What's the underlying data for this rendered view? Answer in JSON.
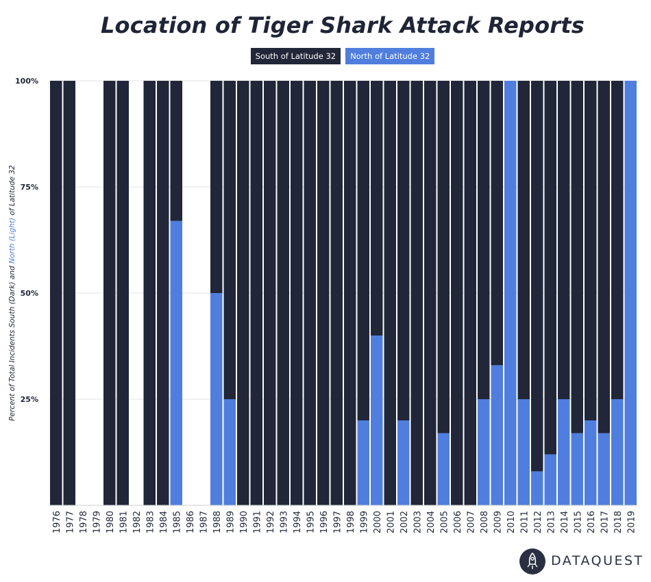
{
  "header": {
    "title": "Location of Tiger Shark Attack Reports"
  },
  "legend": [
    {
      "label": "South of Latitude 32",
      "color": "#212638"
    },
    {
      "label": "North of Latitude 32",
      "color": "#4f7ede"
    }
  ],
  "brand": {
    "name": "DATAQUEST"
  },
  "chart_data": {
    "type": "bar",
    "stacked": true,
    "title": "Location of Tiger Shark Attack Reports",
    "ylabel": "Percent of Total Incidents South (Dark) and North (Light) of Latitude 32",
    "ylabel_parts": [
      {
        "text": "Percent of Total Incidents South (Dark) and ",
        "color": "#212638"
      },
      {
        "text": "North (Light)",
        "color": "#4f7ede"
      },
      {
        "text": " of Latitude 32",
        "color": "#212638"
      }
    ],
    "ylim": [
      0,
      100
    ],
    "yticks": [
      {
        "value": 25,
        "label": "25%"
      },
      {
        "value": 50,
        "label": "50%"
      },
      {
        "value": 75,
        "label": "75%"
      },
      {
        "value": 100,
        "label": "100%"
      }
    ],
    "grid": true,
    "legend_position": "top-center",
    "categories": [
      "1976",
      "1977",
      "1978",
      "1979",
      "1980",
      "1981",
      "1982",
      "1983",
      "1984",
      "1985",
      "1986",
      "1987",
      "1988",
      "1989",
      "1990",
      "1991",
      "1992",
      "1993",
      "1994",
      "1995",
      "1996",
      "1997",
      "1998",
      "1999",
      "2000",
      "2001",
      "2002",
      "2003",
      "2004",
      "2005",
      "2006",
      "2007",
      "2008",
      "2009",
      "2010",
      "2011",
      "2012",
      "2013",
      "2014",
      "2015",
      "2016",
      "2017",
      "2018",
      "2019"
    ],
    "series": [
      {
        "name": "North of Latitude 32",
        "color": "#4f7ede",
        "values": [
          0,
          0,
          null,
          null,
          0,
          0,
          null,
          0,
          0,
          67,
          null,
          null,
          50,
          25,
          0,
          0,
          0,
          0,
          0,
          0,
          0,
          0,
          0,
          20,
          40,
          0,
          20,
          0,
          0,
          17,
          0,
          0,
          25,
          33,
          100,
          25,
          8,
          12,
          25,
          17,
          20,
          17,
          25,
          100
        ]
      },
      {
        "name": "South of Latitude 32",
        "color": "#212638",
        "values": [
          100,
          100,
          null,
          null,
          100,
          100,
          null,
          100,
          100,
          33,
          null,
          null,
          50,
          75,
          100,
          100,
          100,
          100,
          100,
          100,
          100,
          100,
          100,
          80,
          60,
          100,
          80,
          100,
          100,
          83,
          100,
          100,
          75,
          67,
          0,
          75,
          92,
          88,
          75,
          83,
          80,
          83,
          75,
          0
        ]
      }
    ]
  }
}
